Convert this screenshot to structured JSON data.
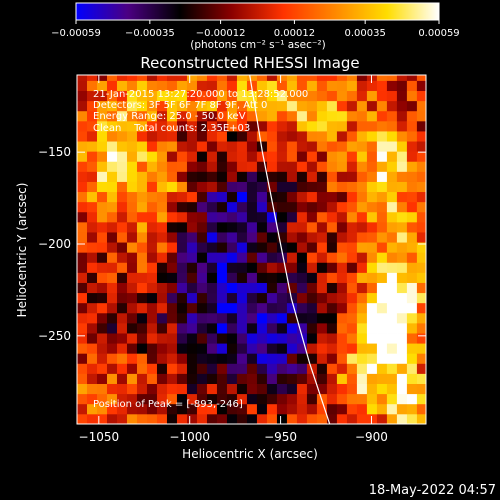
{
  "chart_data": {
    "type": "heatmap",
    "title": "Reconstructed RHESSI Image",
    "xlabel": "Heliocentric X (arcsec)",
    "ylabel": "Heliocentric Y (arcsec)",
    "xlim": [
      -1062,
      -870
    ],
    "ylim": [
      -298,
      -108
    ],
    "xticks": [
      -1050,
      -1000,
      -950,
      -900
    ],
    "xtick_labels": [
      "−1050",
      "−1000",
      "−950",
      "−900"
    ],
    "yticks": [
      -150,
      -200,
      -250
    ],
    "ytick_labels": [
      "−150",
      "−200",
      "−250"
    ],
    "colorbar": {
      "min": -0.00059,
      "max": 0.00059,
      "ticks": [
        -0.00059,
        -0.00035,
        -0.00012,
        0.00012,
        0.00035,
        0.00059
      ],
      "tick_labels": [
        "−0.00059",
        "−0.00035",
        "−0.00012",
        "0.00012",
        "0.00035",
        "0.00059"
      ],
      "unit_label": "(photons cm⁻² s⁻¹ asec⁻²)",
      "colormap": [
        "#0000ff",
        "#4b0082",
        "#000000",
        "#8b0000",
        "#ff3300",
        "#ff8800",
        "#ffdd00",
        "#ffffff"
      ]
    },
    "annotations": {
      "line1": "21-Jan-2015 13:27:20.000 to 13:28:52.000",
      "line2": "Detectors: 3F 5F 6F 7F 8F 9F, Att 0",
      "line3": "Energy Range: 25.0 - 50.0 keV",
      "line4": "Clean    Total counts: 2.35E+03",
      "peak": "Position of Peak = [-893,-246]"
    },
    "peak_position": [
      -893,
      -246
    ],
    "limb_points": [
      [
        -967,
        -108
      ],
      [
        -960,
        -150
      ],
      [
        -952,
        -190
      ],
      [
        -944,
        -230
      ],
      [
        -934,
        -265
      ],
      [
        -923,
        -298
      ]
    ],
    "pixel_size_arcsec": 5.5,
    "blobs": [
      {
        "x": -1040,
        "y": -152,
        "sx": 14,
        "sy": 24,
        "v": 0.00045
      },
      {
        "x": -1012,
        "y": -168,
        "sx": 10,
        "sy": 14,
        "v": 0.0003
      },
      {
        "x": -1022,
        "y": -200,
        "sx": 10,
        "sy": 10,
        "v": 0.00022
      },
      {
        "x": -1008,
        "y": -120,
        "sx": 18,
        "sy": 10,
        "v": 0.00024
      },
      {
        "x": -960,
        "y": -118,
        "sx": 26,
        "sy": 10,
        "v": 0.00026
      },
      {
        "x": -930,
        "y": -126,
        "sx": 14,
        "sy": 14,
        "v": 0.00032
      },
      {
        "x": -892,
        "y": -158,
        "sx": 13,
        "sy": 22,
        "v": 0.0004
      },
      {
        "x": -885,
        "y": -222,
        "sx": 12,
        "sy": 24,
        "v": 0.00048
      },
      {
        "x": -892,
        "y": -246,
        "sx": 10,
        "sy": 14,
        "v": 0.00057
      },
      {
        "x": -880,
        "y": -285,
        "sx": 12,
        "sy": 12,
        "v": 0.00052
      },
      {
        "x": -905,
        "y": -272,
        "sx": 10,
        "sy": 12,
        "v": 0.0004
      },
      {
        "x": -1045,
        "y": -280,
        "sx": 16,
        "sy": 14,
        "v": 0.00015
      },
      {
        "x": -985,
        "y": -215,
        "sx": 22,
        "sy": 40,
        "v": -0.00042
      },
      {
        "x": -952,
        "y": -250,
        "sx": 18,
        "sy": 20,
        "v": -0.00036
      },
      {
        "x": -962,
        "y": -180,
        "sx": 14,
        "sy": 12,
        "v": -0.00028
      },
      {
        "x": -1040,
        "y": -240,
        "sx": 14,
        "sy": 14,
        "v": -0.00012
      }
    ]
  },
  "timestamp": "18-May-2022 04:57",
  "colors": {
    "background": "#000000",
    "foreground": "#ffffff",
    "limb": "#ffffff"
  }
}
